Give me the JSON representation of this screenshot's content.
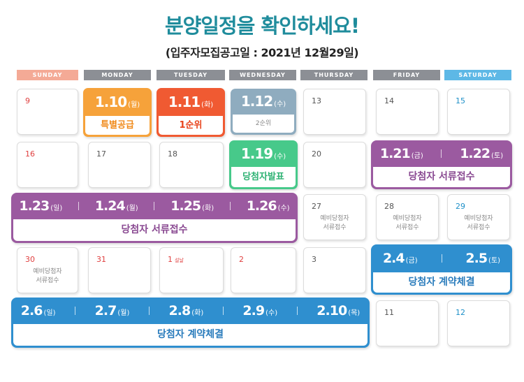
{
  "title": "분양일정을 확인하세요!",
  "subtitle": "(입주자모집공고일 : 2021년 12월29일)",
  "weekdays": [
    "SUNDAY",
    "MONDAY",
    "TUESDAY",
    "WEDNESDAY",
    "THURSDAY",
    "FRIDAY",
    "SATURDAY"
  ],
  "cells": {
    "d9": "9",
    "d13": "13",
    "d14": "14",
    "d15": "15",
    "d16": "16",
    "d17": "17",
    "d18": "18",
    "d20": "20",
    "d27": "27",
    "d28": "28",
    "d29": "29",
    "d30": "30",
    "d31": "31",
    "d1": "1",
    "d2": "2",
    "d3": "3",
    "d11": "11",
    "d12": "12"
  },
  "holiday_label": "설날",
  "prelim_line1": "예비당첨자",
  "prelim_line2": "서류접수",
  "cards": {
    "jan10": {
      "date": "1.10",
      "day": "(월)",
      "label": "특별공급"
    },
    "jan11": {
      "date": "1.11",
      "day": "(화)",
      "label": "1순위"
    },
    "jan12": {
      "date": "1.12",
      "day": "(수)",
      "label": "2순위"
    },
    "jan19": {
      "date": "1.19",
      "day": "(수)",
      "label": "당첨자발표"
    }
  },
  "ranges": {
    "docs_fri_sat": {
      "dates": [
        {
          "date": "1.21",
          "day": "(금)"
        },
        {
          "date": "1.22",
          "day": "(토)"
        }
      ],
      "label": "당첨자 서류접수"
    },
    "docs_week": {
      "dates": [
        {
          "date": "1.23",
          "day": "(일)"
        },
        {
          "date": "1.24",
          "day": "(월)"
        },
        {
          "date": "1.25",
          "day": "(화)"
        },
        {
          "date": "1.26",
          "day": "(수)"
        }
      ],
      "label": "당첨자 서류접수"
    },
    "contract_fri_sat": {
      "dates": [
        {
          "date": "2.4",
          "day": "(금)"
        },
        {
          "date": "2.5",
          "day": "(토)"
        }
      ],
      "label": "당첨자 계약체결"
    },
    "contract_week": {
      "dates": [
        {
          "date": "2.6",
          "day": "(일)"
        },
        {
          "date": "2.7",
          "day": "(월)"
        },
        {
          "date": "2.8",
          "day": "(화)"
        },
        {
          "date": "2.9",
          "day": "(수)"
        },
        {
          "date": "2.10",
          "day": "(목)"
        }
      ],
      "label": "당첨자 계약체결"
    }
  },
  "colors": {
    "title": "#1f8c9c",
    "orange": "#f6a23a",
    "red": "#f05a32",
    "slate": "#8facbf",
    "green": "#47c98a",
    "purple": "#9b5aa0",
    "blue": "#2f8fcf"
  }
}
